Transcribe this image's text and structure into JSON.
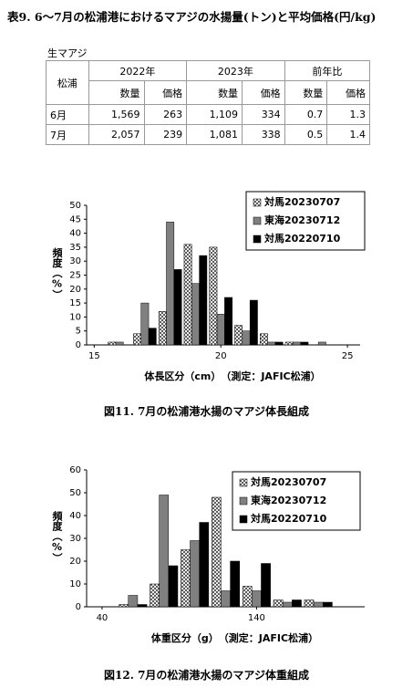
{
  "title": "表9. 6～7月の松浦港におけるマアジの水揚量(トン)と平均価格(円/kg)",
  "table": {
    "label": "生マアジ",
    "corner": "松浦",
    "groups": [
      "2022年",
      "2023年",
      "前年比"
    ],
    "subheaders": [
      "数量",
      "価格",
      "数量",
      "価格",
      "数量",
      "価格"
    ],
    "rows": [
      [
        "6月",
        "1,569",
        "263",
        "1,109",
        "334",
        "0.7",
        "1.3"
      ],
      [
        "7月",
        "2,057",
        "239",
        "1,081",
        "338",
        "0.5",
        "1.4"
      ]
    ]
  },
  "chart_data": [
    {
      "type": "bar",
      "title": "図11. 7月の松浦港水揚のマアジ体長組成",
      "x_label": "体長区分（cm）　（測定：JAFIC松浦）",
      "y_label": "頻度（%）",
      "x": [
        16,
        17,
        18,
        19,
        20,
        21,
        22,
        23,
        24
      ],
      "series": [
        {
          "name": "対馬20230707",
          "color": "#ffffff",
          "hatch": true,
          "values": [
            1,
            4,
            12,
            36,
            35,
            7,
            4,
            1,
            0
          ]
        },
        {
          "name": "東海20230712",
          "color": "#808080",
          "values": [
            1,
            15,
            44,
            22,
            11,
            5,
            1,
            1,
            1
          ]
        },
        {
          "name": "対馬20220710",
          "color": "#000000",
          "values": [
            0,
            6,
            27,
            32,
            17,
            16,
            1,
            1,
            0
          ]
        }
      ],
      "xlim": [
        14.7,
        25.5
      ],
      "xticks": [
        15,
        20,
        25
      ],
      "ylim": [
        0,
        50
      ],
      "yticks": [
        0,
        5,
        10,
        15,
        20,
        25,
        30,
        35,
        40,
        45,
        50
      ],
      "legend": "top-right"
    },
    {
      "type": "bar",
      "title": "図12. 7月の松浦港水揚のマアジ体重組成",
      "x_label": "体重区分（g）　（測定：JAFIC松浦）",
      "y_label": "頻度（%）",
      "x": [
        60,
        80,
        100,
        120,
        140,
        160,
        180
      ],
      "series": [
        {
          "name": "対馬20230707",
          "color": "#ffffff",
          "hatch": true,
          "values": [
            1,
            10,
            25,
            48,
            9,
            3,
            3
          ]
        },
        {
          "name": "東海20230712",
          "color": "#808080",
          "values": [
            5,
            49,
            29,
            7,
            7,
            2,
            2
          ]
        },
        {
          "name": "対馬20220710",
          "color": "#000000",
          "values": [
            1,
            18,
            37,
            20,
            19,
            3,
            2
          ]
        }
      ],
      "xlim": [
        30,
        210
      ],
      "xticks": [
        40,
        140
      ],
      "ylim": [
        0,
        60
      ],
      "yticks": [
        0,
        10,
        20,
        30,
        40,
        50,
        60
      ],
      "legend": "top-right"
    }
  ]
}
